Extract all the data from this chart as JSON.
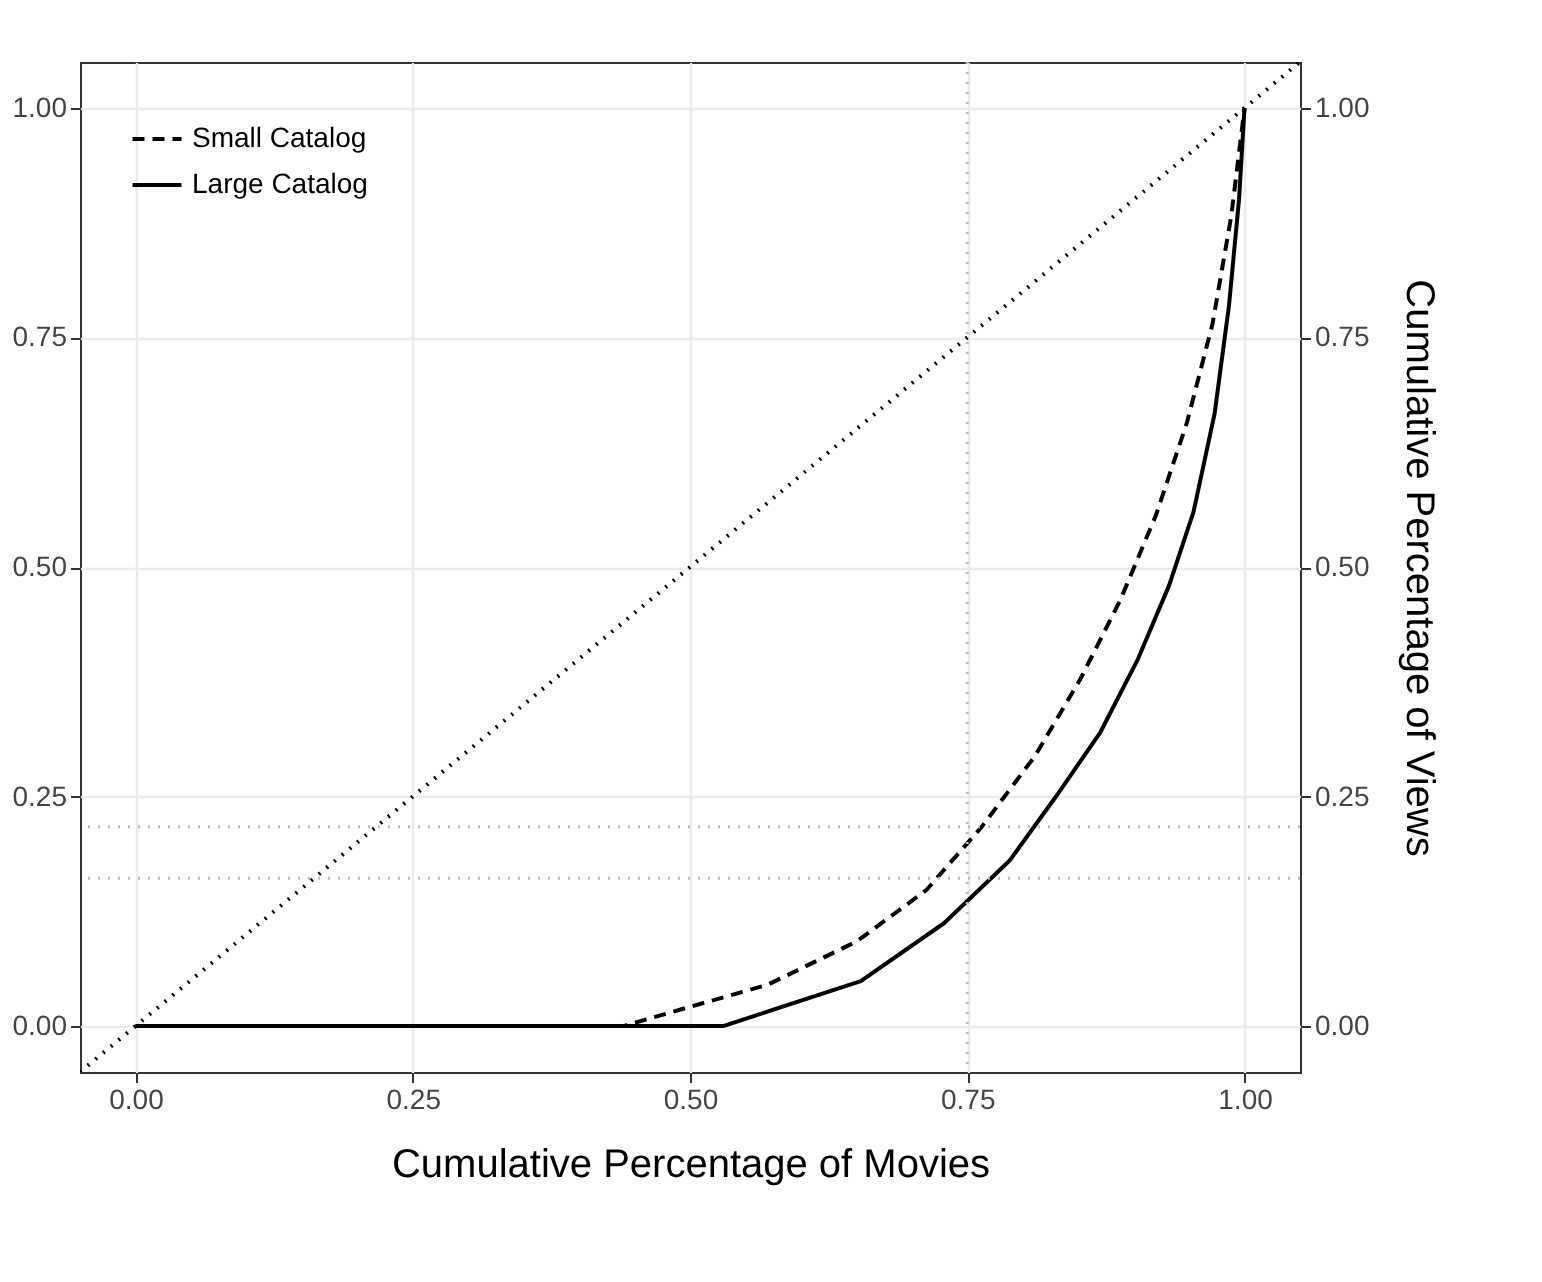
{
  "chart_data": {
    "type": "line",
    "xlabel": "Cumulative Percentage of Movies",
    "y2label": "Cumulative Percentage of Views",
    "xlim": [
      -0.05,
      1.05
    ],
    "xticks": [
      {
        "value": 0,
        "label": "0.00"
      },
      {
        "value": 0.25,
        "label": "0.25"
      },
      {
        "value": 0.5,
        "label": "0.50"
      },
      {
        "value": 0.75,
        "label": "0.75"
      },
      {
        "value": 1,
        "label": "1.00"
      }
    ],
    "ylim": [
      -0.05,
      1.05
    ],
    "yticks": [
      {
        "value": 0,
        "label": "0.00"
      },
      {
        "value": 0.25,
        "label": "0.25"
      },
      {
        "value": 0.5,
        "label": "0.50"
      },
      {
        "value": 0.75,
        "label": "0.75"
      },
      {
        "value": 1,
        "label": "1.00"
      }
    ],
    "y2lim": [
      -0.05,
      1.05
    ],
    "y2ticks": [
      {
        "value": 0,
        "label": "0.00"
      },
      {
        "value": 0.25,
        "label": "0.25"
      },
      {
        "value": 0.5,
        "label": "0.50"
      },
      {
        "value": 0.75,
        "label": "0.75"
      },
      {
        "value": 1,
        "label": "1.00"
      }
    ],
    "series": [
      {
        "name": "Small Catalog",
        "color": "#000000",
        "line_style": "dashed",
        "x": [
          0,
          0.44,
          0.5,
          0.57,
          0.65,
          0.713,
          0.763,
          0.811,
          0.852,
          0.888,
          0.92,
          0.948,
          0.971,
          0.988,
          1
        ],
        "values": [
          0,
          0,
          0.021,
          0.045,
          0.092,
          0.148,
          0.217,
          0.294,
          0.378,
          0.464,
          0.556,
          0.657,
          0.764,
          0.882,
          1
        ]
      },
      {
        "name": "Large Catalog",
        "color": "#000000",
        "line_style": "solid",
        "x": [
          0,
          0.53,
          0.654,
          0.729,
          0.788,
          0.83,
          0.87,
          0.904,
          0.932,
          0.954,
          0.973,
          0.986,
          0.995,
          1
        ],
        "values": [
          0,
          0,
          0.049,
          0.112,
          0.18,
          0.25,
          0.32,
          0.4,
          0.48,
          0.56,
          0.667,
          0.785,
          0.9,
          1
        ]
      },
      {
        "color": "#000000",
        "line_style": "dotted",
        "axis": "y2",
        "x": [
          -0.05,
          1.05
        ],
        "values": [
          -0.05,
          1.05
        ]
      }
    ],
    "ref_lines": [
      {
        "axis": "x",
        "value": 0.75,
        "color": "#bbbbbb",
        "line_style": "dotted"
      },
      {
        "axis": "y",
        "value": 0.217,
        "color": "#bbbbbb",
        "line_style": "dotted"
      },
      {
        "axis": "y",
        "value": 0.161,
        "color": "#bbbbbb",
        "line_style": "dotted"
      }
    ],
    "grid": true,
    "legend": "top left",
    "marker": "none"
  }
}
